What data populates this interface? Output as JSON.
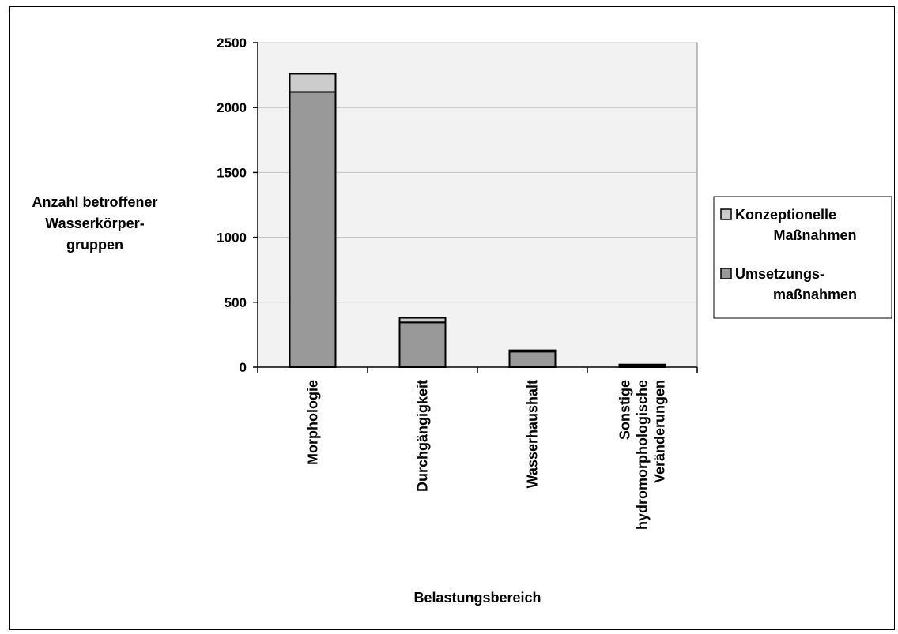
{
  "chart_data": {
    "type": "bar",
    "stacked": true,
    "categories": [
      [
        "Morphologie"
      ],
      [
        "Durchgängigkeit"
      ],
      [
        "Wasserhaushalt"
      ],
      [
        "Sonstige",
        "hydromorphologische",
        "Veränderungen"
      ]
    ],
    "series": [
      {
        "name": [
          "Umsetzungs-",
          "maßnahmen"
        ],
        "values": [
          2120,
          345,
          120,
          15
        ],
        "color": "#999999"
      },
      {
        "name": [
          "Konzeptionelle",
          "Maßnahmen"
        ],
        "values": [
          140,
          35,
          10,
          5
        ],
        "color": "#cccccc"
      }
    ],
    "ylabel": [
      "Anzahl betroffener",
      "Wasserkörper-",
      "gruppen"
    ],
    "xlabel": "Belastungsbereich",
    "ylim": [
      0,
      2500
    ],
    "yticks": [
      0,
      500,
      1000,
      1500,
      2000,
      2500
    ],
    "grid": true,
    "plot_background": "#f2f2f2",
    "legend_position": "right"
  }
}
